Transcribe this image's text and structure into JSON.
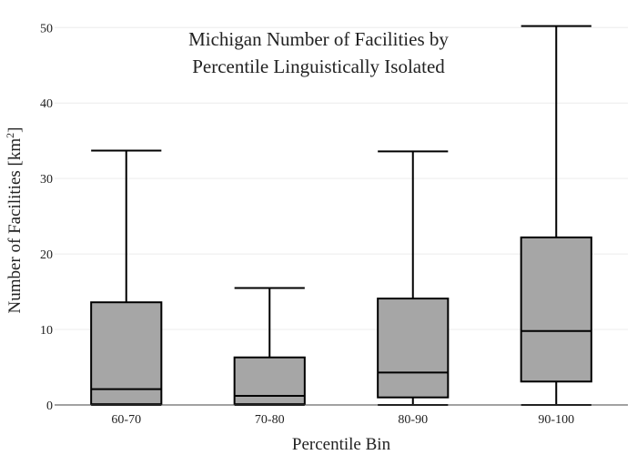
{
  "chart_data": {
    "type": "box",
    "title_lines": [
      "Michigan Number of Facilities by",
      "Percentile Linguistically Isolated"
    ],
    "xlabel": "Percentile Bin",
    "ylabel": "Number of Facilities",
    "ylabel_unit": "[km",
    "ylabel_unit_sup": "2",
    "ylabel_unit_close": "]",
    "categories": [
      "60-70",
      "70-80",
      "80-90",
      "90-100"
    ],
    "boxes": [
      {
        "min": 0,
        "q1": 0.1,
        "median": 2.1,
        "q3": 13.6,
        "max": 33.7
      },
      {
        "min": 0,
        "q1": 0.1,
        "median": 1.2,
        "q3": 6.3,
        "max": 15.5
      },
      {
        "min": 0,
        "q1": 1.0,
        "median": 4.3,
        "q3": 14.1,
        "max": 33.6
      },
      {
        "min": 0,
        "q1": 3.1,
        "median": 9.8,
        "q3": 22.2,
        "max": 50.2
      }
    ],
    "ylim": [
      0,
      51
    ],
    "yticks": [
      0,
      10,
      20,
      30,
      40,
      50
    ],
    "grid": true,
    "box_color": "#a6a6a6",
    "line_color": "#000000",
    "grid_color": "#ececec"
  }
}
